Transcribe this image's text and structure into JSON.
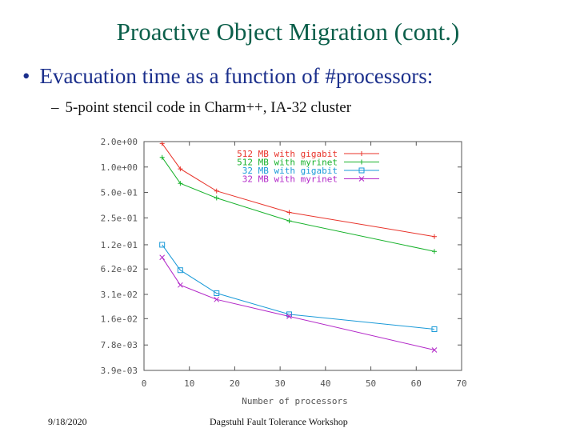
{
  "slide": {
    "title": "Proactive Object Migration (cont.)",
    "bullet_marker": "•",
    "bullet": "Evacuation time as a function of  #processors:",
    "subbullet_marker": "–",
    "subbullet": "5-point stencil code  in Charm++, IA-32 cluster",
    "footer_date": "9/18/2020",
    "footer_center": "Dagstuhl Fault Tolerance Workshop"
  },
  "chart_data": {
    "type": "line",
    "title": "",
    "xlabel": "Number of processors",
    "ylabel": "",
    "xlim": [
      0,
      70
    ],
    "ylim": [
      0.0039,
      2.0
    ],
    "yscale": "log",
    "xticks": [
      0,
      10,
      20,
      30,
      40,
      50,
      60,
      70
    ],
    "xtick_labels": [
      "0",
      "10",
      "20",
      "30",
      "40",
      "50",
      "60",
      "70"
    ],
    "yticks": [
      0.0039,
      0.0078,
      0.016,
      0.031,
      0.062,
      0.12,
      0.25,
      0.5,
      1.0,
      2.0
    ],
    "ytick_labels": [
      "3.9e-03",
      "7.8e-03",
      "1.6e-02",
      "3.1e-02",
      "6.2e-02",
      "1.2e-01",
      "2.5e-01",
      "5.0e-01",
      "1.0e+00",
      "2.0e+00"
    ],
    "grid": false,
    "legend_position": "top-right",
    "series": [
      {
        "name": "512 MB with gigabit",
        "color": "#e8332a",
        "marker": "+",
        "x": [
          4,
          8,
          16,
          32,
          64
        ],
        "y": [
          1.9,
          0.95,
          0.52,
          0.29,
          0.15
        ]
      },
      {
        "name": "512 MB with myrinet",
        "color": "#17b22b",
        "marker": "+",
        "x": [
          4,
          8,
          16,
          32,
          64
        ],
        "y": [
          1.3,
          0.64,
          0.43,
          0.23,
          0.1
        ]
      },
      {
        "name": "32 MB with gigabit",
        "color": "#1a9ad8",
        "marker": "square",
        "x": [
          4,
          8,
          16,
          32,
          64
        ],
        "y": [
          0.12,
          0.06,
          0.032,
          0.018,
          0.012
        ]
      },
      {
        "name": "32 MB with myrinet",
        "color": "#b227c8",
        "marker": "x",
        "x": [
          4,
          8,
          16,
          32,
          64
        ],
        "y": [
          0.085,
          0.04,
          0.027,
          0.017,
          0.0068
        ]
      }
    ]
  }
}
